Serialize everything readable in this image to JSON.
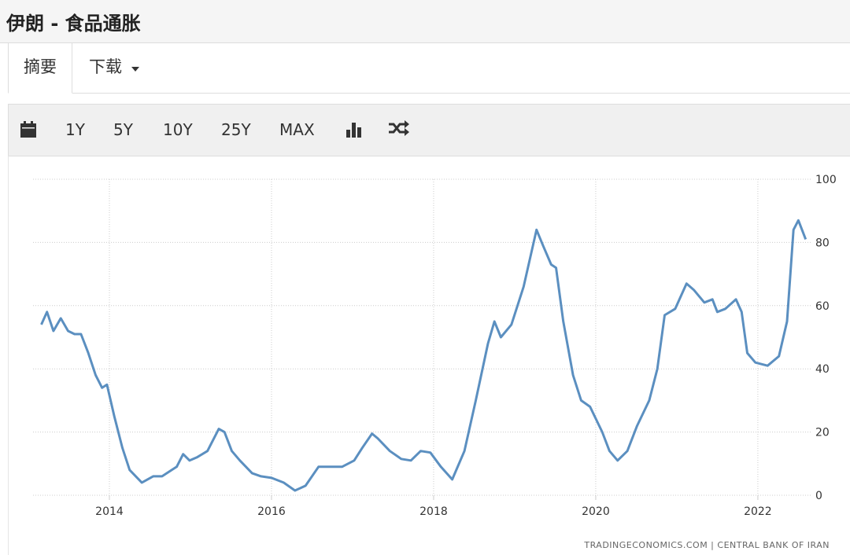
{
  "header": {
    "title": "伊朗 - 食品通胀"
  },
  "tabs": [
    "摘要",
    "下载"
  ],
  "toolbar": {
    "ranges": [
      "1Y",
      "5Y",
      "10Y",
      "25Y",
      "MAX"
    ]
  },
  "chart_data": {
    "type": "line",
    "color": "#5b8fc0",
    "grid": true,
    "x": [
      2013.16,
      2013.23,
      2013.31,
      2013.4,
      2013.49,
      2013.57,
      2013.65,
      2013.74,
      2013.83,
      2013.91,
      2013.97,
      2014.06,
      2014.16,
      2014.25,
      2014.4,
      2014.54,
      2014.65,
      2014.77,
      2014.83,
      2014.91,
      2014.99,
      2015.08,
      2015.21,
      2015.35,
      2015.42,
      2015.51,
      2015.61,
      2015.76,
      2015.87,
      2016.0,
      2016.15,
      2016.29,
      2016.42,
      2016.58,
      2016.73,
      2016.87,
      2017.02,
      2017.12,
      2017.24,
      2017.31,
      2017.46,
      2017.6,
      2017.72,
      2017.84,
      2017.96,
      2018.09,
      2018.23,
      2018.38,
      2018.52,
      2018.67,
      2018.75,
      2018.83,
      2018.96,
      2019.11,
      2019.27,
      2019.35,
      2019.45,
      2019.51,
      2019.6,
      2019.72,
      2019.82,
      2019.93,
      2020.08,
      2020.17,
      2020.27,
      2020.39,
      2020.51,
      2020.66,
      2020.76,
      2020.85,
      2020.98,
      2021.12,
      2021.21,
      2021.34,
      2021.44,
      2021.5,
      2021.6,
      2021.73,
      2021.8,
      2021.87,
      2021.97,
      2022.12,
      2022.26,
      2022.36,
      2022.44,
      2022.5,
      2022.59
    ],
    "values": [
      54,
      58,
      52,
      56,
      52,
      51,
      51,
      45,
      38,
      34,
      35,
      25,
      15,
      8,
      4,
      6,
      6,
      8,
      9,
      13,
      11,
      12,
      14,
      21,
      20,
      14,
      11,
      7,
      6,
      5.5,
      4,
      1.5,
      3,
      9,
      9,
      9,
      11,
      15,
      19.5,
      18,
      14,
      11.5,
      11,
      14,
      13.5,
      9,
      5,
      14,
      30,
      48,
      55,
      50,
      54,
      66,
      84,
      79,
      73,
      72,
      55,
      38,
      30,
      28,
      20,
      14,
      11,
      14,
      22,
      30,
      40,
      57,
      59,
      67,
      65,
      61,
      62,
      58,
      59,
      62,
      58,
      45,
      42,
      41,
      44,
      55,
      84,
      87,
      81
    ],
    "xlim": [
      2013,
      2022.7
    ],
    "xticks": [
      2014,
      2016,
      2018,
      2020,
      2022
    ],
    "ylim": [
      0,
      100
    ],
    "yticks": [
      0,
      20,
      40,
      60,
      80,
      100
    ],
    "source": "TRADINGECONOMICS.COM | CENTRAL BANK OF IRAN"
  }
}
